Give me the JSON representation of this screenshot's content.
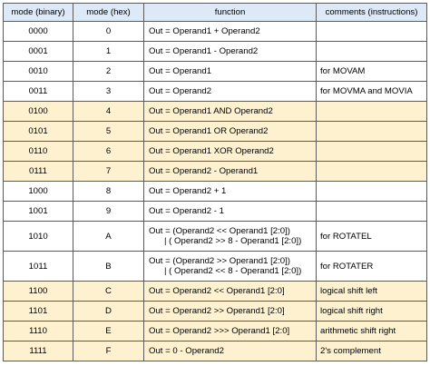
{
  "table": {
    "headers": {
      "mode_binary": "mode (binary)",
      "mode_hex": "mode (hex)",
      "function": "function",
      "comments": "comments (instructions)"
    },
    "rows": [
      {
        "binary": "0000",
        "hex": "0",
        "function": [
          "Out = Operand1 + Operand2"
        ],
        "comment": "",
        "highlight": false
      },
      {
        "binary": "0001",
        "hex": "1",
        "function": [
          "Out = Operand1 - Operand2"
        ],
        "comment": "",
        "highlight": false
      },
      {
        "binary": "0010",
        "hex": "2",
        "function": [
          "Out = Operand1"
        ],
        "comment": "for MOVAM",
        "highlight": false
      },
      {
        "binary": "0011",
        "hex": "3",
        "function": [
          "Out = Operand2"
        ],
        "comment": "for MOVMA and MOVIA",
        "highlight": false
      },
      {
        "binary": "0100",
        "hex": "4",
        "function": [
          "Out = Operand1 AND Operand2"
        ],
        "comment": "",
        "highlight": true
      },
      {
        "binary": "0101",
        "hex": "5",
        "function": [
          "Out = Operand1 OR Operand2"
        ],
        "comment": "",
        "highlight": true
      },
      {
        "binary": "0110",
        "hex": "6",
        "function": [
          "Out = Operand1 XOR Operand2"
        ],
        "comment": "",
        "highlight": true
      },
      {
        "binary": "0111",
        "hex": "7",
        "function": [
          "Out = Operand2 - Operand1"
        ],
        "comment": "",
        "highlight": true
      },
      {
        "binary": "1000",
        "hex": "8",
        "function": [
          "Out = Operand2 + 1"
        ],
        "comment": "",
        "highlight": false
      },
      {
        "binary": "1001",
        "hex": "9",
        "function": [
          "Out = Operand2 - 1"
        ],
        "comment": "",
        "highlight": false
      },
      {
        "binary": "1010",
        "hex": "A",
        "function": [
          "Out = (Operand2 << Operand1 [2:0])",
          "| ( Operand2 >> 8 - Operand1 [2:0])"
        ],
        "comment": "for ROTATEL",
        "highlight": false
      },
      {
        "binary": "1011",
        "hex": "B",
        "function": [
          "Out = (Operand2 >> Operand1 [2:0])",
          "| ( Operand2 << 8 - Operand1 [2:0])"
        ],
        "comment": "for ROTATER",
        "highlight": false
      },
      {
        "binary": "1100",
        "hex": "C",
        "function": [
          "Out = Operand2 << Operand1 [2:0]"
        ],
        "comment": "logical shift left",
        "highlight": true
      },
      {
        "binary": "1101",
        "hex": "D",
        "function": [
          "Out = Operand2 >> Operand1 [2:0]"
        ],
        "comment": "logical shift right",
        "highlight": true
      },
      {
        "binary": "1110",
        "hex": "E",
        "function": [
          "Out = Operand2 >>> Operand1 [2:0]"
        ],
        "comment": "arithmetic shift right",
        "highlight": true
      },
      {
        "binary": "1111",
        "hex": "F",
        "function": [
          "Out = 0 - Operand2"
        ],
        "comment": "2's complement",
        "highlight": true
      }
    ]
  },
  "colors": {
    "header_bg": "#dde9f6",
    "highlight_bg": "#fdf1cf",
    "border": "#5b5b5b"
  }
}
